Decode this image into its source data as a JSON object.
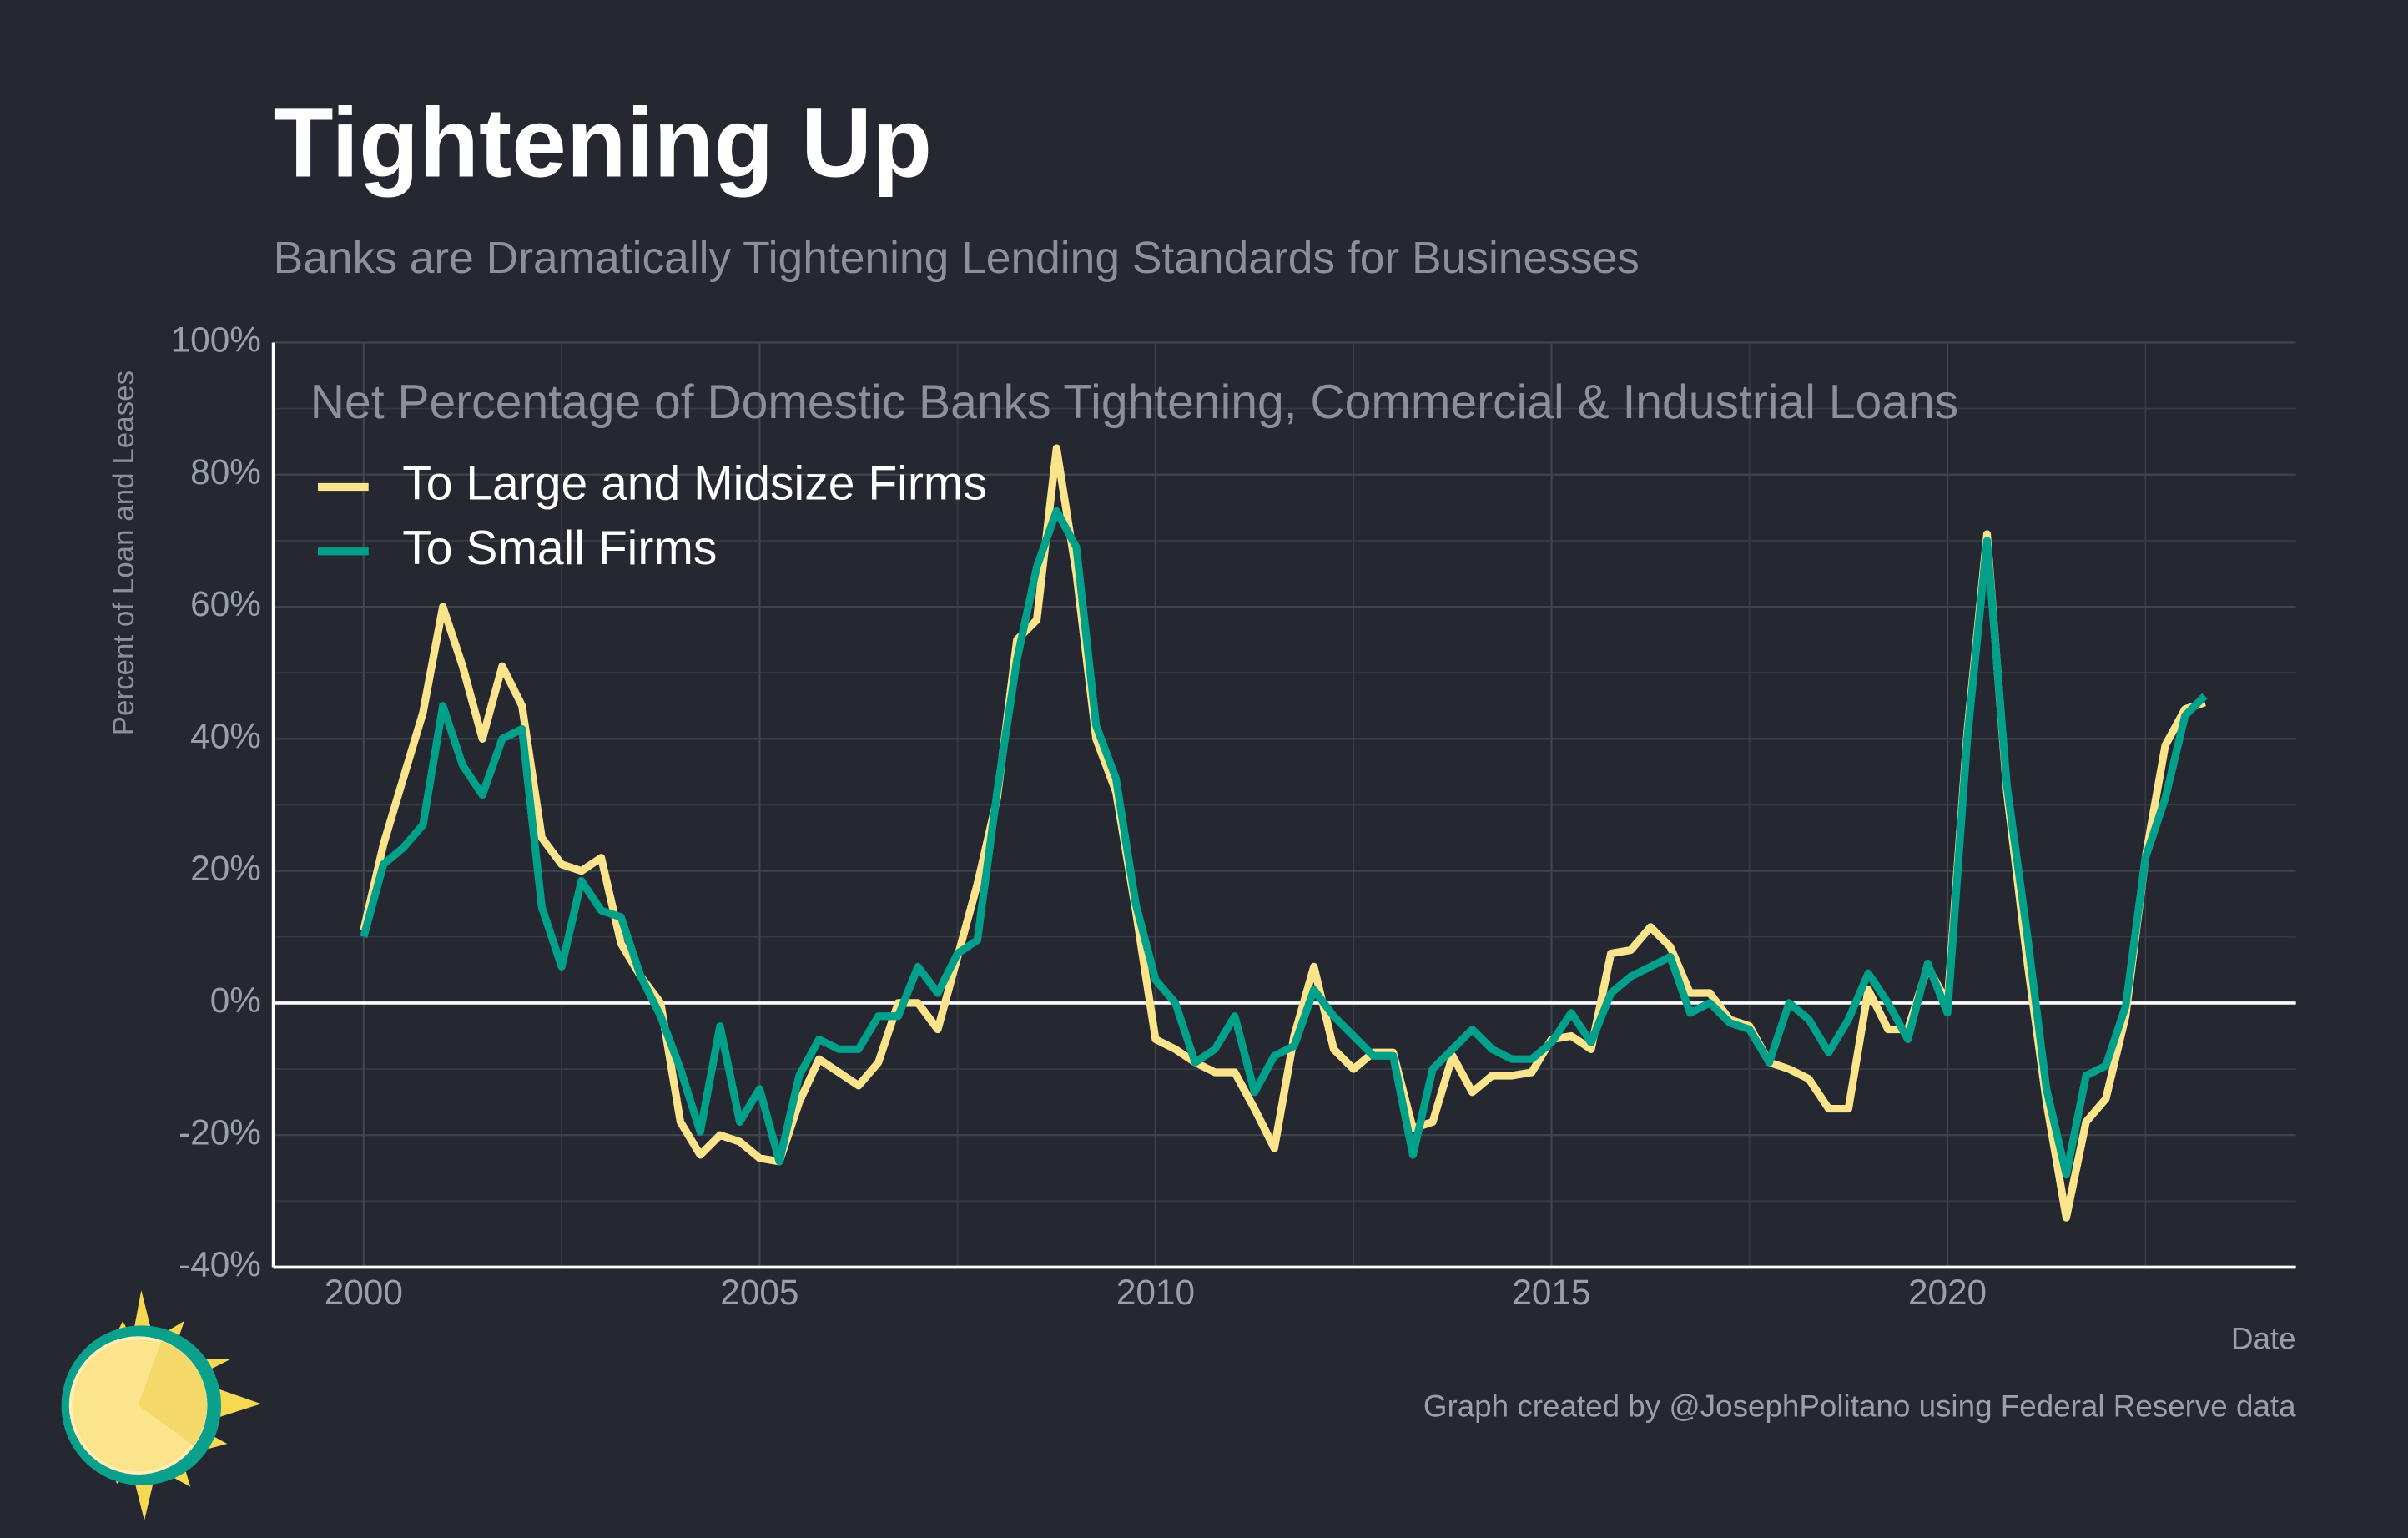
{
  "chart_data": {
    "type": "line",
    "title": "Tightening Up",
    "subtitle": "Banks are Dramatically Tightening Lending Standards for Businesses",
    "inner_title": "Net Percentage of Domestic Banks Tightening, Commercial & Industrial Loans",
    "ylabel": "Percent of Loan and Leases",
    "xlabel": "Date",
    "caption": "Graph created by @JosephPolitano using Federal Reserve data",
    "grid": true,
    "legend": "upper left",
    "xlim": [
      1998.86,
      2024.4
    ],
    "xticks": [
      2000,
      2005,
      2010,
      2015,
      2020
    ],
    "ylim": [
      -40,
      100
    ],
    "yticks": [
      {
        "value": -40,
        "label": "-40%"
      },
      {
        "value": -20,
        "label": "-20%"
      },
      {
        "value": 0,
        "label": "0%"
      },
      {
        "value": 20,
        "label": "20%"
      },
      {
        "value": 40,
        "label": "40%"
      },
      {
        "value": 60,
        "label": "60%"
      },
      {
        "value": 80,
        "label": "80%"
      },
      {
        "value": 100,
        "label": "100%"
      }
    ],
    "x": [
      2000,
      2000.25,
      2000.5,
      2000.75,
      2001,
      2001.25,
      2001.5,
      2001.75,
      2002,
      2002.25,
      2002.5,
      2002.75,
      2003,
      2003.25,
      2003.5,
      2003.75,
      2004,
      2004.25,
      2004.5,
      2004.75,
      2005,
      2005.25,
      2005.5,
      2005.75,
      2006,
      2006.25,
      2006.5,
      2006.75,
      2007,
      2007.25,
      2007.5,
      2007.75,
      2008,
      2008.25,
      2008.5,
      2008.75,
      2009,
      2009.25,
      2009.5,
      2009.75,
      2010,
      2010.25,
      2010.5,
      2010.75,
      2011,
      2011.25,
      2011.5,
      2011.75,
      2012,
      2012.25,
      2012.5,
      2012.75,
      2013,
      2013.25,
      2013.5,
      2013.75,
      2014,
      2014.25,
      2014.5,
      2014.75,
      2015,
      2015.25,
      2015.5,
      2015.75,
      2016,
      2016.25,
      2016.5,
      2016.75,
      2017,
      2017.25,
      2017.5,
      2017.75,
      2018,
      2018.25,
      2018.5,
      2018.75,
      2019,
      2019.25,
      2019.5,
      2019.75,
      2020,
      2020.25,
      2020.5,
      2020.75,
      2021,
      2021.25,
      2021.5,
      2021.75,
      2022,
      2022.25,
      2022.5,
      2022.75,
      2023,
      2023.25
    ],
    "series": [
      {
        "name": "To Large and Midsize Firms",
        "color": "#fbe48c",
        "values": [
          11,
          24,
          34,
          44,
          60,
          51,
          40,
          51,
          45,
          25,
          21,
          20,
          22,
          9,
          4,
          0,
          -18,
          -23,
          -20,
          -21,
          -23.5,
          -24,
          -15,
          -8.5,
          -10.5,
          -12.5,
          -9,
          0,
          0,
          -4,
          7,
          18,
          31,
          55,
          58,
          84,
          65,
          40,
          32,
          14,
          -5.5,
          -7,
          -9,
          -10.5,
          -10.5,
          -16,
          -22,
          -5,
          5.5,
          -7,
          -10,
          -7.5,
          -7.5,
          -19,
          -18,
          -8,
          -13.5,
          -11,
          -11,
          -10.5,
          -5.5,
          -5,
          -7,
          7.5,
          8,
          11.5,
          8.5,
          1.5,
          1.5,
          -2.5,
          -3.5,
          -9,
          -10,
          -11.5,
          -16,
          -16,
          2,
          -4,
          -4,
          5.5,
          0,
          41,
          71,
          32,
          7,
          -15,
          -32.5,
          -18,
          -14.5,
          -2,
          22,
          39,
          44.5,
          45.5
        ]
      },
      {
        "name": "To Small Firms",
        "color": "#00a08b",
        "values": [
          10,
          21,
          23.5,
          27,
          45,
          36,
          31.5,
          40,
          41.5,
          14.5,
          5.5,
          18.5,
          14,
          13,
          4,
          -2,
          -10,
          -19.5,
          -3.5,
          -18,
          -13,
          -24,
          -11,
          -5.5,
          -7,
          -7,
          -2,
          -2,
          5.5,
          1.5,
          7.5,
          9.5,
          32,
          52,
          66,
          74.5,
          69,
          42,
          34,
          15,
          3.5,
          0,
          -9,
          -7,
          -2,
          -13.5,
          -8,
          -6.5,
          2,
          -2,
          -5,
          -8,
          -8,
          -23,
          -10,
          -7,
          -4,
          -7,
          -8.5,
          -8.5,
          -6,
          -1.5,
          -6,
          1.5,
          4,
          5.5,
          7,
          -1.5,
          0,
          -3,
          -4,
          -9,
          0,
          -2.5,
          -7.5,
          -2.5,
          4.5,
          0,
          -5.5,
          6,
          -1.5,
          40,
          70,
          33,
          11,
          -13,
          -26,
          -11,
          -9.5,
          -0.5,
          22,
          31,
          43.5,
          46.5
        ]
      }
    ]
  }
}
